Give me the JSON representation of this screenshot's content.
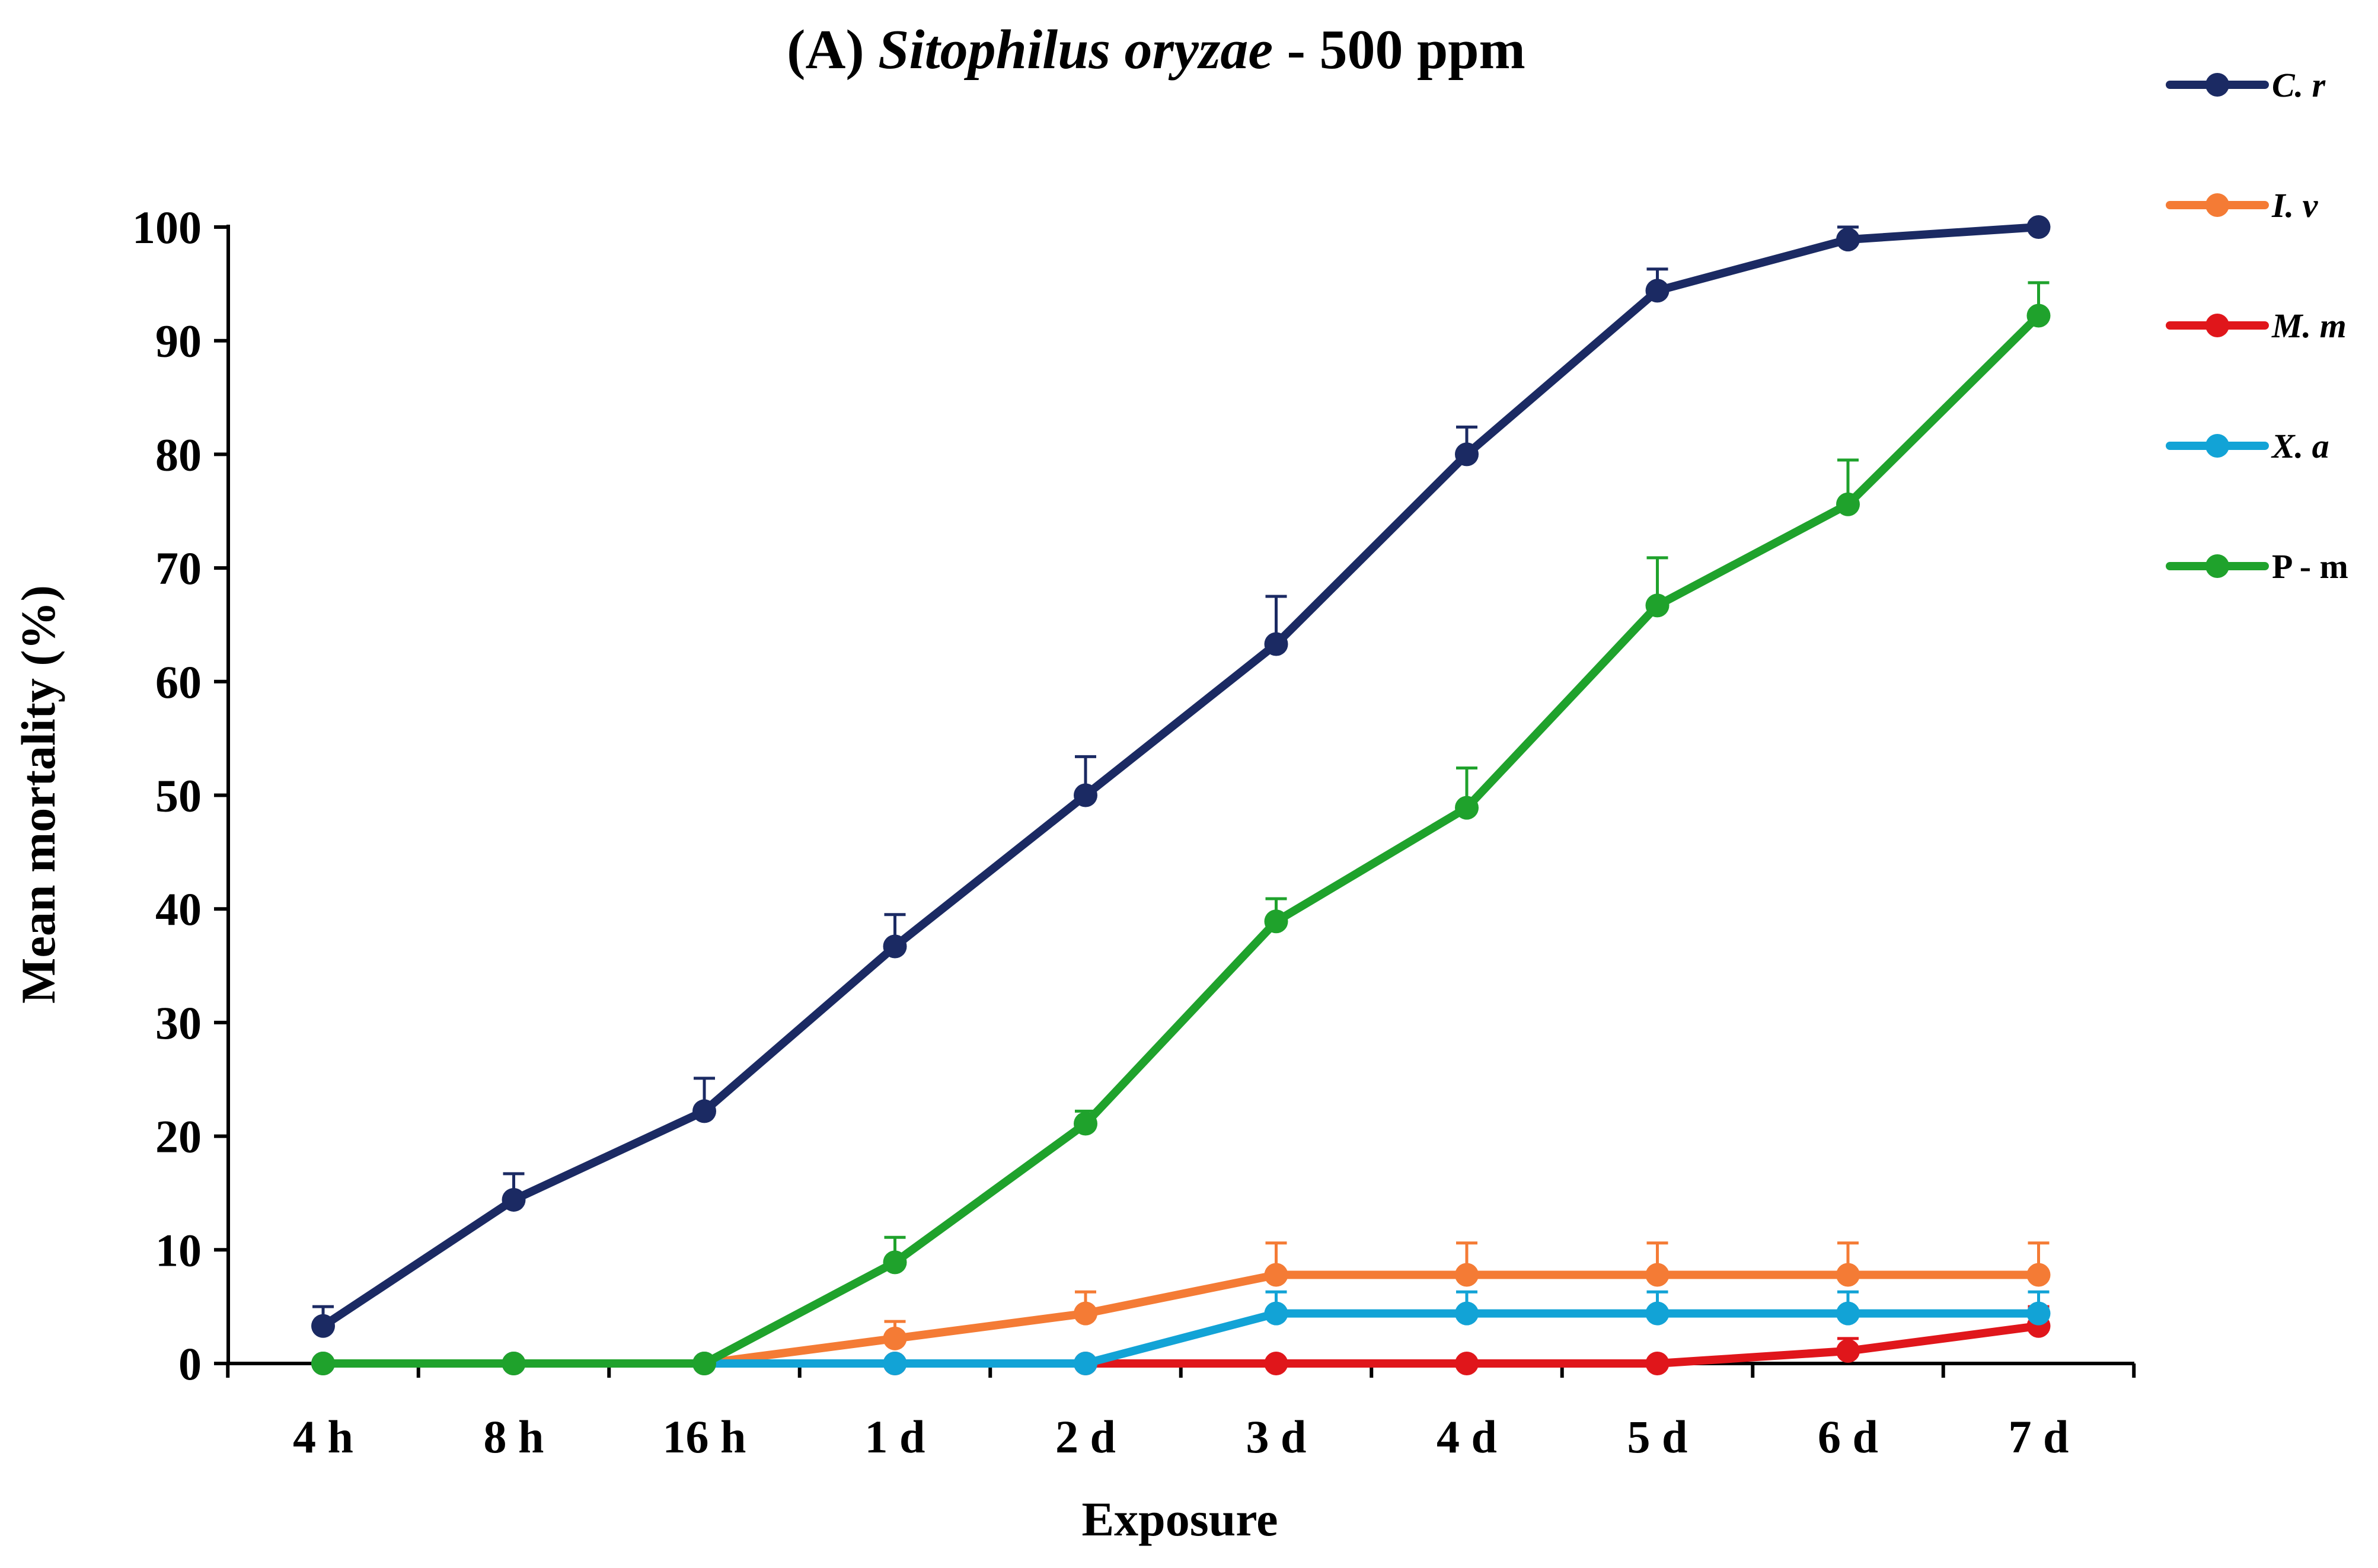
{
  "chart_data": {
    "type": "line",
    "title_prefix": "(A)",
    "title_species": "Sitophilus oryzae",
    "title_suffix": "- 500 ppm",
    "xlabel": "Exposure",
    "ylabel": "Mean mortality (%)",
    "ylim": [
      0,
      100
    ],
    "yticks": [
      "0",
      "10",
      "20",
      "30",
      "40",
      "50",
      "60",
      "70",
      "80",
      "90",
      "100"
    ],
    "categories": [
      "4 h",
      "8 h",
      "16 h",
      "1 d",
      "2 d",
      "3 d",
      "4 d",
      "5 d",
      "6 d",
      "7 d"
    ],
    "grid": false,
    "legend_position": "right",
    "series": [
      {
        "name": "C. r",
        "italic": true,
        "color": "#1b2a63",
        "values": [
          3.3,
          14.4,
          22.2,
          36.7,
          50.0,
          63.3,
          80.0,
          94.4,
          98.9,
          100.0
        ],
        "errors": [
          1.7,
          2.3,
          2.9,
          2.8,
          3.4,
          4.2,
          2.4,
          1.9,
          1.1,
          0.0
        ]
      },
      {
        "name": "I. v",
        "italic": true,
        "color": "#f47b35",
        "values": [
          0,
          0,
          0,
          2.2,
          4.4,
          7.8,
          7.8,
          7.8,
          7.8,
          7.8
        ],
        "errors": [
          0,
          0,
          0,
          1.5,
          1.9,
          2.8,
          2.8,
          2.8,
          2.8,
          2.8
        ]
      },
      {
        "name": "M. m",
        "italic": true,
        "color": "#e0161b",
        "values": [
          0,
          0,
          0,
          0,
          0,
          0,
          0,
          0,
          1.1,
          3.3
        ],
        "errors": [
          0,
          0,
          0,
          0,
          0,
          0,
          0,
          0,
          1.1,
          1.7
        ]
      },
      {
        "name": "X. a",
        "italic": true,
        "color": "#12a3d6",
        "values": [
          0,
          0,
          0,
          0,
          0,
          4.4,
          4.4,
          4.4,
          4.4,
          4.4
        ],
        "errors": [
          0,
          0,
          0,
          0,
          0,
          1.9,
          1.9,
          1.9,
          1.9,
          1.9
        ]
      },
      {
        "name": "P - m",
        "italic": false,
        "color": "#1fa22c",
        "values": [
          0,
          0,
          0,
          8.9,
          21.1,
          38.9,
          48.9,
          66.7,
          75.6,
          92.2
        ],
        "errors": [
          0,
          0,
          0,
          2.2,
          1.1,
          2.0,
          3.5,
          4.2,
          3.9,
          2.9
        ]
      }
    ]
  }
}
